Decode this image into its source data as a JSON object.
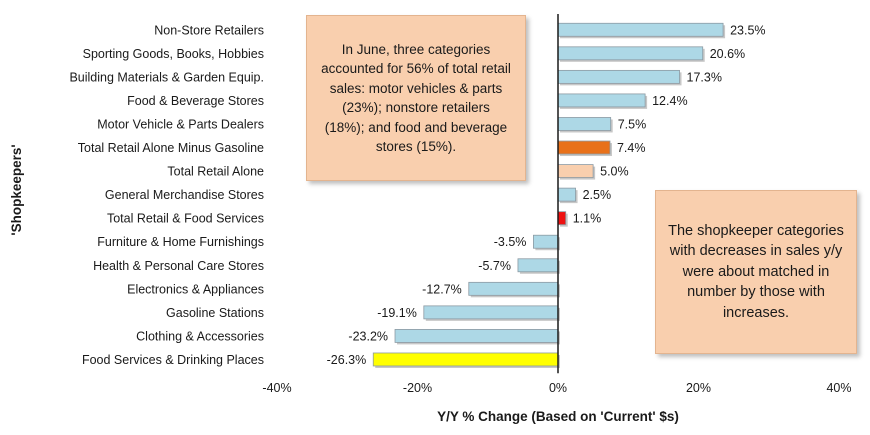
{
  "chart_data": {
    "type": "bar",
    "orientation": "horizontal",
    "categories": [
      "Non-Store Retailers",
      "Sporting Goods, Books, Hobbies",
      "Building Materials & Garden Equip.",
      "Food & Beverage Stores",
      "Motor Vehicle & Parts Dealers",
      "Total Retail Alone Minus Gasoline",
      "Total Retail Alone",
      "General Merchandise Stores",
      "Total Retail & Food Services",
      "Furniture & Home Furnishings",
      "Health & Personal Care Stores",
      "Electronics & Appliances",
      "Gasoline Stations",
      "Clothing & Accessories",
      "Food Services & Drinking Places"
    ],
    "values": [
      23.5,
      20.6,
      17.3,
      12.4,
      7.5,
      7.4,
      5.0,
      2.5,
      1.1,
      -3.5,
      -5.7,
      -12.7,
      -19.1,
      -23.2,
      -26.3
    ],
    "value_labels": [
      "23.5%",
      "20.6%",
      "17.3%",
      "12.4%",
      "7.5%",
      "7.4%",
      "5.0%",
      "2.5%",
      "1.1%",
      "-3.5%",
      "-5.7%",
      "-12.7%",
      "-19.1%",
      "-23.2%",
      "-26.3%"
    ],
    "bar_colors": [
      "#add8e6",
      "#add8e6",
      "#add8e6",
      "#add8e6",
      "#add8e6",
      "#e8711a",
      "#f9cfae",
      "#add8e6",
      "#ee1111",
      "#add8e6",
      "#add8e6",
      "#add8e6",
      "#add8e6",
      "#add8e6",
      "#ffff00"
    ],
    "bar_border": "#8c9aa3",
    "xlim": [
      -40,
      40
    ],
    "x_ticks": [
      -40,
      -20,
      0,
      20,
      40
    ],
    "x_tick_labels": [
      "-40%",
      "-20%",
      "0%",
      "20%",
      "40%"
    ],
    "xlabel": "Y/Y % Change (Based on 'Current' $s)",
    "ylabel": "'Shopkeepers'",
    "grid": false,
    "legend": "none"
  },
  "annotations": {
    "note_1": "In June, three categories accounted for 56% of total retail sales: motor vehicles & parts (23%); nonstore retailers (18%); and food and beverage stores (15%).",
    "note_2": "The shopkeeper categories with decreases in sales y/y were about matched in number by those with increases."
  }
}
